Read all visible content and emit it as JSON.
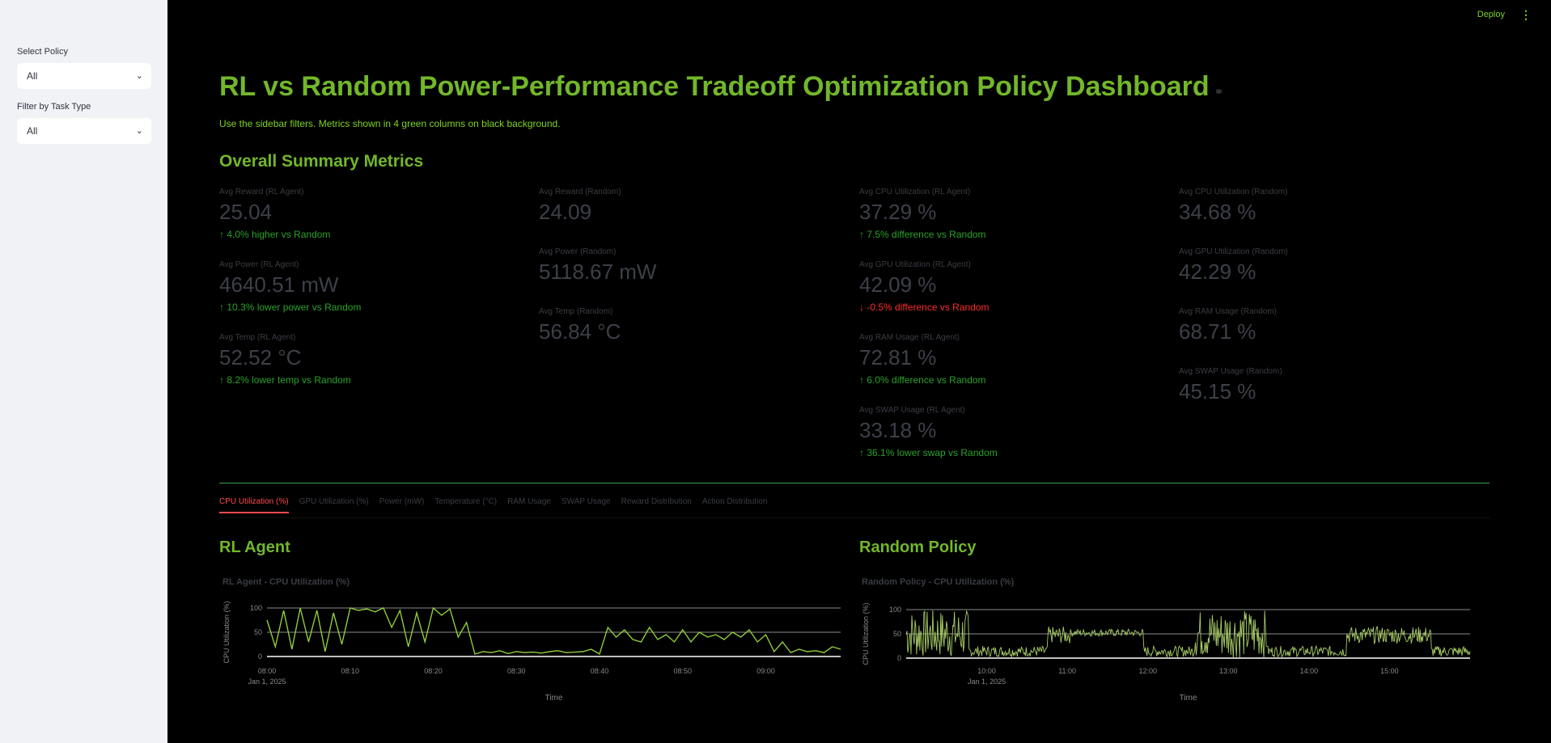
{
  "sidebar": {
    "policy_label": "Select Policy",
    "policy_value": "All",
    "task_label": "Filter by Task Type",
    "task_value": "All"
  },
  "header": {
    "deploy": "Deploy",
    "menu_icon": "kebab-menu-icon"
  },
  "title": "RL vs Random Power-Performance Tradeoff Optimization Policy Dashboard",
  "subtitle": "Use the sidebar filters. Metrics shown in 4 green columns on black background.",
  "summary_title": "Overall Summary Metrics",
  "metrics": {
    "col1": [
      {
        "label": "Avg Reward (RL Agent)",
        "value": "25.04",
        "delta": "4.0% higher vs Random",
        "dir": "up"
      },
      {
        "label": "Avg Power (RL Agent)",
        "value": "4640.51 mW",
        "delta": "10.3% lower power vs Random",
        "dir": "up"
      },
      {
        "label": "Avg Temp (RL Agent)",
        "value": "52.52 °C",
        "delta": "8.2% lower temp vs Random",
        "dir": "up"
      }
    ],
    "col2": [
      {
        "label": "Avg Reward (Random)",
        "value": "24.09"
      },
      {
        "label": "Avg Power (Random)",
        "value": "5118.67 mW"
      },
      {
        "label": "Avg Temp (Random)",
        "value": "56.84 °C"
      }
    ],
    "col3": [
      {
        "label": "Avg CPU Utilization (RL Agent)",
        "value": "37.29 %",
        "delta": "7.5% difference vs Random",
        "dir": "up"
      },
      {
        "label": "Avg GPU Utilization (RL Agent)",
        "value": "42.09 %",
        "delta": "-0.5% difference vs Random",
        "dir": "down"
      },
      {
        "label": "Avg RAM Usage (RL Agent)",
        "value": "72.81 %",
        "delta": "6.0% difference vs Random",
        "dir": "up"
      },
      {
        "label": "Avg SWAP Usage (RL Agent)",
        "value": "33.18 %",
        "delta": "36.1% lower swap vs Random",
        "dir": "up"
      }
    ],
    "col4": [
      {
        "label": "Avg CPU Utilization (Random)",
        "value": "34.68 %"
      },
      {
        "label": "Avg GPU Utilization (Random)",
        "value": "42.29 %"
      },
      {
        "label": "Avg RAM Usage (Random)",
        "value": "68.71 %"
      },
      {
        "label": "Avg SWAP Usage (Random)",
        "value": "45.15 %"
      }
    ]
  },
  "tabs": [
    "CPU Utilization (%)",
    "GPU Utilization (%)",
    "Power (mW)",
    "Temperature (°C)",
    "RAM Usage",
    "SWAP Usage",
    "Reward Distribution",
    "Action Distribution"
  ],
  "active_tab": 0,
  "sections": {
    "rl": "RL Agent",
    "random": "Random Policy"
  },
  "chart_data": [
    {
      "type": "line",
      "title": "RL Agent - CPU Utilization (%)",
      "xlabel": "Time",
      "ylabel": "CPU Utilization (%)",
      "x_range": [
        "2025-01-01 08:00",
        "2025-01-01 09:09"
      ],
      "x_ticks": [
        "08:00",
        "08:10",
        "08:20",
        "08:30",
        "08:40",
        "08:50",
        "09:00"
      ],
      "x_subtick": "Jan 1, 2025",
      "y_ticks": [
        "0",
        "50",
        "100"
      ],
      "ylim": [
        0,
        100
      ],
      "color": "#8fcc3a",
      "grid": true,
      "series": [
        {
          "x_minutes": [
            0,
            1,
            2,
            3,
            4,
            5,
            6,
            7,
            8,
            9,
            10,
            11,
            12,
            13,
            14,
            15,
            16,
            17,
            18,
            19,
            20,
            21,
            22,
            23,
            24,
            25,
            26,
            27,
            28,
            29,
            30,
            31,
            32,
            33,
            34,
            35,
            36,
            37,
            38,
            39,
            40,
            41,
            42,
            43,
            44,
            45,
            46,
            47,
            48,
            49,
            50,
            51,
            52,
            53,
            54,
            55,
            56,
            57,
            58,
            59,
            60,
            61,
            62,
            63,
            64,
            65,
            66,
            67,
            68,
            69
          ],
          "values": [
            75,
            20,
            95,
            15,
            100,
            30,
            95,
            10,
            90,
            25,
            100,
            95,
            98,
            92,
            100,
            60,
            95,
            20,
            90,
            30,
            100,
            85,
            98,
            40,
            70,
            5,
            10,
            8,
            12,
            6,
            10,
            8,
            9,
            7,
            10,
            12,
            8,
            9,
            10,
            15,
            5,
            60,
            40,
            55,
            35,
            30,
            60,
            35,
            45,
            30,
            55,
            30,
            50,
            40,
            45,
            35,
            50,
            40,
            55,
            30,
            45,
            10,
            30,
            8,
            15,
            10,
            12,
            8,
            20,
            15
          ]
        }
      ]
    },
    {
      "type": "line",
      "title": "Random Policy - CPU Utilization (%)",
      "xlabel": "Time",
      "ylabel": "CPU Utilization (%)",
      "x_range": [
        "2025-01-01 09:00",
        "2025-01-01 16:00"
      ],
      "x_ticks": [
        "10:00",
        "11:00",
        "12:00",
        "13:00",
        "14:00",
        "15:00"
      ],
      "x_subtick": "Jan 1, 2025",
      "y_ticks": [
        "0",
        "50",
        "100"
      ],
      "ylim": [
        0,
        100
      ],
      "color": "#a8cc66",
      "grid": true,
      "segments": [
        {
          "from": 0,
          "to": 0.11,
          "mode": "full"
        },
        {
          "from": 0.11,
          "to": 0.25,
          "mode": "low"
        },
        {
          "from": 0.25,
          "to": 0.29,
          "mode": "mid"
        },
        {
          "from": 0.29,
          "to": 0.42,
          "mode": "mid50"
        },
        {
          "from": 0.42,
          "to": 0.51,
          "mode": "low"
        },
        {
          "from": 0.51,
          "to": 0.64,
          "mode": "full"
        },
        {
          "from": 0.64,
          "to": 0.78,
          "mode": "low"
        },
        {
          "from": 0.78,
          "to": 0.93,
          "mode": "mid"
        },
        {
          "from": 0.93,
          "to": 1.0,
          "mode": "low"
        }
      ]
    }
  ]
}
